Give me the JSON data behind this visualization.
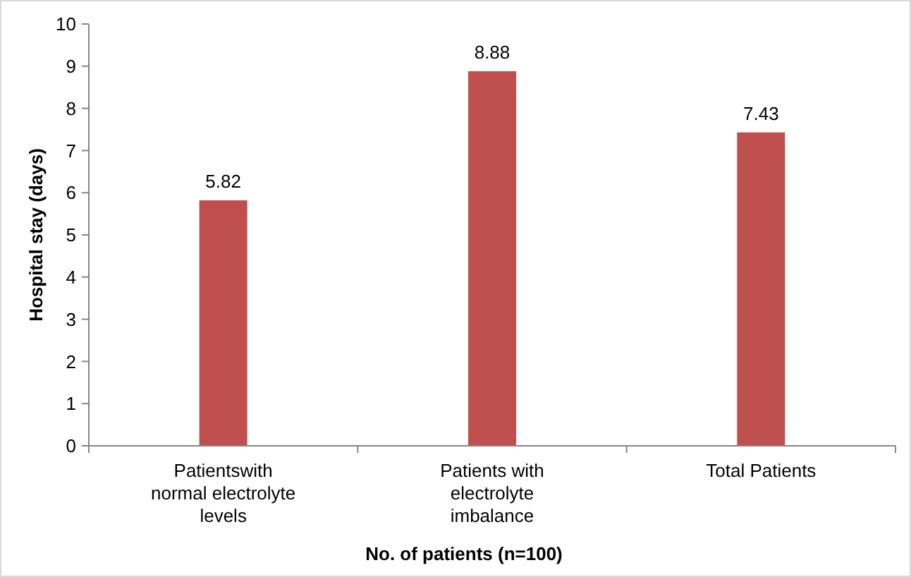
{
  "chart_data": {
    "type": "bar",
    "xlabel": "No. of patients (n=100)",
    "ylabel": "Hospital stay (days)",
    "categories": [
      "Patientswith normal electrolyte levels",
      "Patients with electrolyte imbalance",
      "Total Patients"
    ],
    "values": [
      5.82,
      8.88,
      7.43
    ],
    "color": "#c0504d",
    "ylim": [
      0,
      10
    ],
    "yticks": [
      0,
      1,
      2,
      3,
      4,
      5,
      6,
      7,
      8,
      9,
      10
    ],
    "grid": false,
    "data_labels": true
  }
}
